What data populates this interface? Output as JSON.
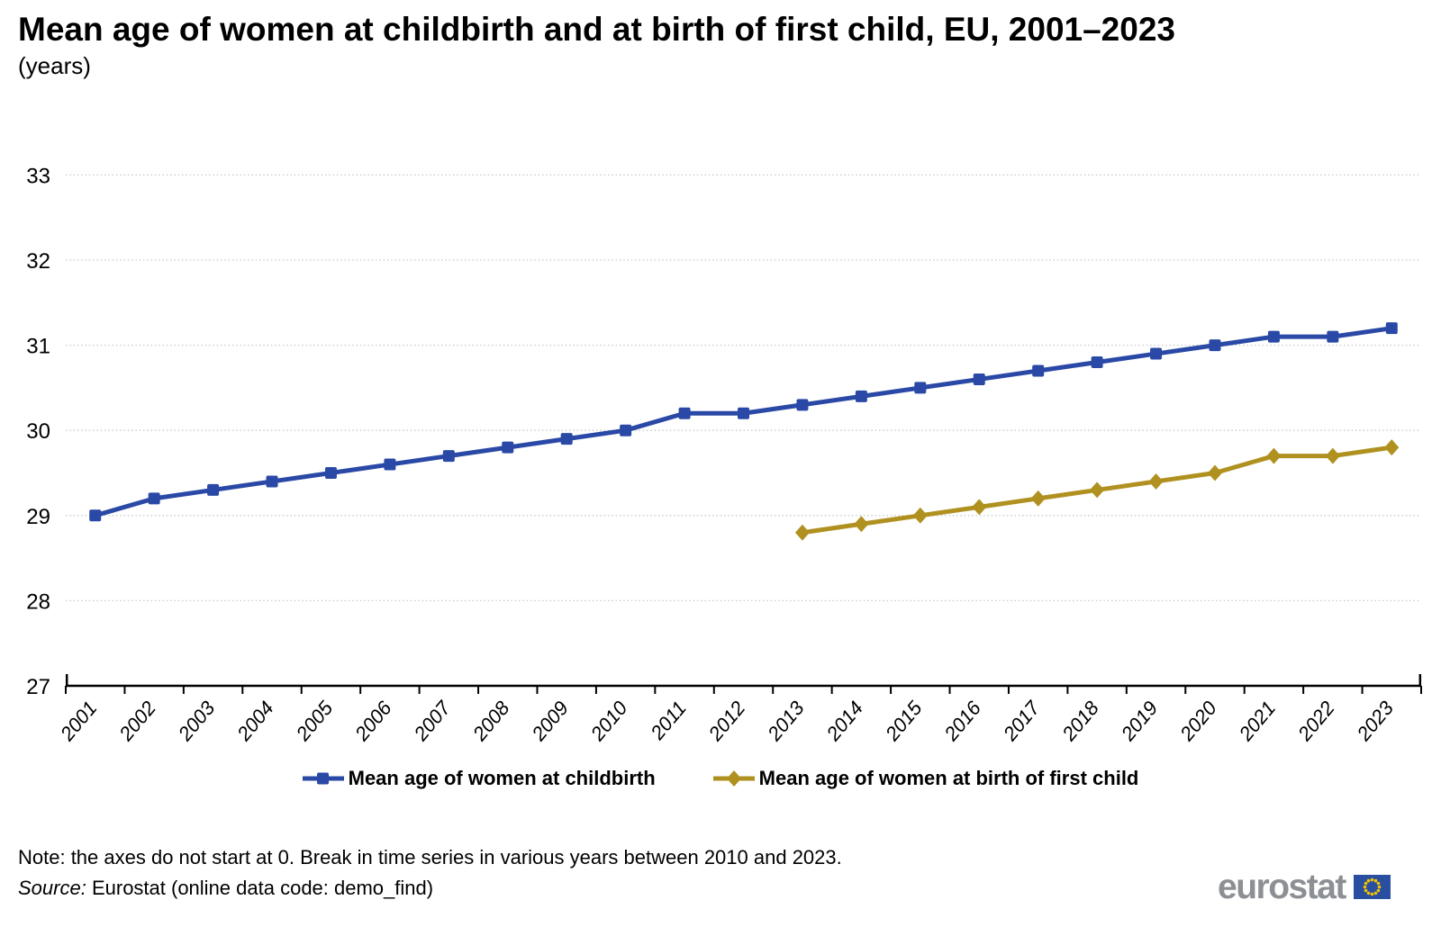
{
  "title": "Mean age of women at childbirth and at birth of first child, EU, 2001–2023",
  "subtitle": "(years)",
  "note": "Note: the axes do not start at 0. Break in time series in various years between 2010 and 2023.",
  "source_label": "Source:",
  "source_text": "Eurostat (online data code: demo_find)",
  "logo": {
    "text": "eurostat"
  },
  "colors": {
    "childbirth": "#2A49A6",
    "first_child": "#B09120",
    "grid": "#C8C8C8",
    "axis": "#000000",
    "logo_gray": "#8C8F94",
    "flag_blue": "#2B4FA0",
    "flag_stars": "#F3C300"
  },
  "chart_data": {
    "type": "line",
    "title": "Mean age of women at childbirth and at birth of first child, EU, 2001–2023",
    "subtitle": "(years)",
    "x": [
      "2001",
      "2002",
      "2003",
      "2004",
      "2005",
      "2006",
      "2007",
      "2008",
      "2009",
      "2010",
      "2011",
      "2012",
      "2013",
      "2014",
      "2015",
      "2016",
      "2017",
      "2018",
      "2019",
      "2020",
      "2021",
      "2022",
      "2023"
    ],
    "series": [
      {
        "name": "Mean age of women at childbirth",
        "marker": "square",
        "color_key": "childbirth",
        "values": [
          29.0,
          29.2,
          29.3,
          29.4,
          29.5,
          29.6,
          29.7,
          29.8,
          29.9,
          30.0,
          30.2,
          30.2,
          30.3,
          30.4,
          30.5,
          30.6,
          30.7,
          30.8,
          30.9,
          31.0,
          31.1,
          31.1,
          31.2
        ]
      },
      {
        "name": "Mean age of women at birth of first child",
        "marker": "diamond",
        "color_key": "first_child",
        "values": [
          null,
          null,
          null,
          null,
          null,
          null,
          null,
          null,
          null,
          null,
          null,
          null,
          28.8,
          28.9,
          29.0,
          29.1,
          29.2,
          29.3,
          29.4,
          29.5,
          29.7,
          29.7,
          29.8
        ]
      }
    ],
    "xlabel": "",
    "ylabel": "",
    "ylim": [
      27,
      33
    ],
    "y_ticks": [
      27,
      28,
      29,
      30,
      31,
      32,
      33
    ],
    "grid": "horizontal-dotted",
    "legend_position": "bottom"
  }
}
